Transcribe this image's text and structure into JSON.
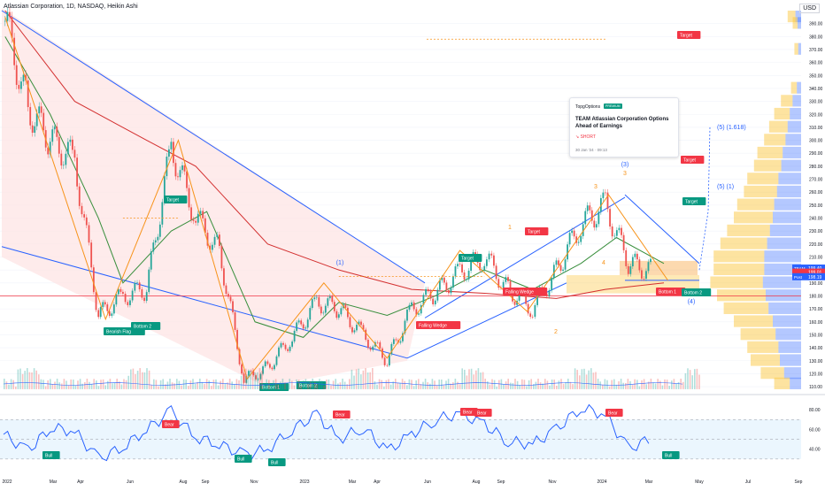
{
  "header": {
    "title": "Atlassian Corporation, 1D, NASDAQ, Heikin Ashi",
    "currency": "USD"
  },
  "publication": {
    "author": "TopgOptions",
    "author_badge": "PREMIUM",
    "title": "TEAM Atlassian Corporation Options Ahead of Earnings",
    "direction": "SHORT",
    "date": "30 Jan '24 · 09:13"
  },
  "colors": {
    "up": "#26a69a",
    "down": "#ef5350",
    "trend": "#2962ff",
    "zigzag": "#f7931a",
    "ma_red": "#d32f2f",
    "ma_green": "#388e3c",
    "wedge_fill": "#fde3e3",
    "rsi_line": "#2962ff"
  },
  "chart_data": [
    {
      "type": "line",
      "subtype": "heikin-ashi candlestick",
      "series": [
        {
          "name": "TEAM",
          "x": [
            "2022-01-03",
            "2022-02-01",
            "2022-03-01",
            "2022-04-01",
            "2022-05-01",
            "2022-06-01",
            "2022-07-01",
            "2022-08-01",
            "2022-09-01",
            "2022-10-01",
            "2022-11-01",
            "2022-12-01",
            "2023-01-01",
            "2023-02-01",
            "2023-03-01",
            "2023-04-01",
            "2023-05-01",
            "2023-06-01",
            "2023-07-01",
            "2023-08-01",
            "2023-09-01",
            "2023-10-01",
            "2023-11-01",
            "2023-12-01",
            "2024-01-01",
            "2024-02-01",
            "2024-03-01",
            "2024-04-01"
          ],
          "values": [
            392,
            325,
            300,
            285,
            165,
            180,
            185,
            295,
            240,
            215,
            115,
            125,
            148,
            175,
            170,
            150,
            130,
            170,
            182,
            198,
            210,
            185,
            170,
            200,
            235,
            250,
            205,
            199
          ]
        }
      ],
      "y_axis_ticks": [
        "390.00",
        "380.00",
        "370.00",
        "360.00",
        "350.00",
        "340.00",
        "330.00",
        "320.00",
        "310.00",
        "300.00",
        "290.00",
        "280.00",
        "270.00",
        "260.00",
        "250.00",
        "240.00",
        "230.00",
        "220.00",
        "210.00",
        "200.00",
        "190.00",
        "180.00",
        "170.00",
        "160.00",
        "150.00",
        "140.00",
        "130.00",
        "120.00",
        "110.00"
      ],
      "ylim": [
        108,
        400
      ],
      "price_labels": [
        {
          "text": "TEAM",
          "value": "199.40"
        },
        {
          "text": "",
          "value": "199.01"
        },
        {
          "text": "Post",
          "value": "198.19"
        }
      ],
      "annotations": [
        "Target",
        "Target",
        "Target",
        "Target",
        "Target",
        "Target",
        "Bearish Flag",
        "Bottom 2",
        "Bottom 1",
        "Bottom 2",
        "Falling Wedge",
        "Falling Wedge",
        "Bottom 1",
        "Bottom 2",
        "(1)",
        "(3)",
        "(4)",
        "(5) (1.618)",
        "(5) (1)",
        "1",
        "2",
        "3",
        "3",
        "4"
      ],
      "grid": true
    },
    {
      "type": "line",
      "indicator": "RSI",
      "ylim": [
        20,
        90
      ],
      "y_axis_ticks": [
        "80.00",
        "60.00",
        "40.00"
      ],
      "series": [
        {
          "name": "RSI",
          "x": [
            "2022-01",
            "2022-02",
            "2022-03",
            "2022-04",
            "2022-05",
            "2022-06",
            "2022-07",
            "2022-08",
            "2022-09",
            "2022-10",
            "2022-11",
            "2022-12",
            "2023-01",
            "2023-02",
            "2023-03",
            "2023-04",
            "2023-05",
            "2023-06",
            "2023-07",
            "2023-08",
            "2023-09",
            "2023-10",
            "2023-11",
            "2023-12",
            "2024-01",
            "2024-02",
            "2024-03",
            "2024-04"
          ],
          "values": [
            55,
            38,
            62,
            58,
            30,
            42,
            60,
            78,
            52,
            45,
            34,
            40,
            60,
            75,
            50,
            62,
            38,
            55,
            70,
            76,
            65,
            48,
            45,
            60,
            82,
            75,
            40,
            52
          ]
        }
      ],
      "annotations": [
        "Bear",
        "Bear",
        "Bear",
        "Bear",
        "Bear",
        "Bull",
        "Bull",
        "Bull",
        "Bull"
      ]
    }
  ],
  "x_axis_ticks": [
    "2022",
    "Mar",
    "Apr",
    "Jun",
    "Aug",
    "Sep",
    "Nov",
    "2023",
    "Mar",
    "Apr",
    "Jun",
    "Aug",
    "Sep",
    "Nov",
    "2024",
    "Mar",
    "May",
    "Jul",
    "Sep"
  ]
}
